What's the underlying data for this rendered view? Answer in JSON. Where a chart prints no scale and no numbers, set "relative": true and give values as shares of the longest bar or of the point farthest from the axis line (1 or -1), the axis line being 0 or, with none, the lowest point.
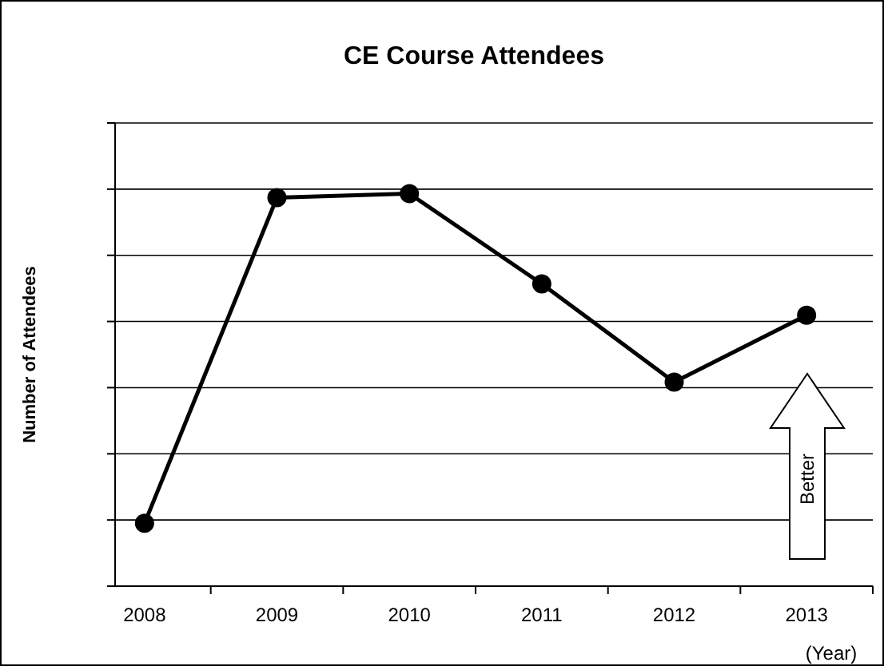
{
  "chart_data": {
    "type": "line",
    "title": "CE Course Attendees",
    "ylabel": "Number of Attendees",
    "xlabel": "(Year)",
    "relative": true,
    "categories": [
      "2008",
      "2009",
      "2010",
      "2011",
      "2012",
      "2013"
    ],
    "series": [
      {
        "color": "#000000",
        "values": [
          0.16,
          0.99,
          1,
          0.77,
          0.52,
          0.69
        ]
      }
    ],
    "grid": "y",
    "marker": "circle",
    "line_style": "solid",
    "annotations": [
      "Better"
    ]
  }
}
